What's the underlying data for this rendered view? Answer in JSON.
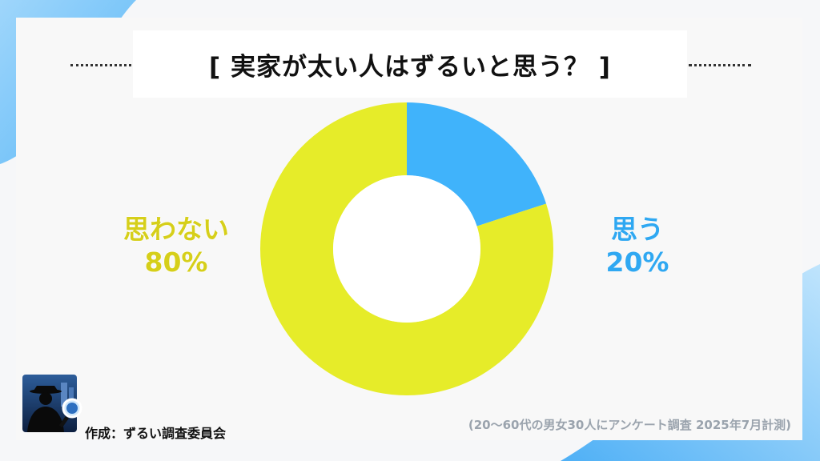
{
  "title": "[ 実家が太い人はずるいと思う？ ]",
  "chart_data": {
    "type": "pie",
    "categories": [
      "思う",
      "思わない"
    ],
    "values": [
      20,
      80
    ],
    "value_labels": [
      "20%",
      "80%"
    ],
    "colors": [
      "#40b3fb",
      "#e6ec29"
    ],
    "donut": true
  },
  "labels": {
    "no_name": "思わない",
    "no_pct": "80%",
    "yes_name": "思う",
    "yes_pct": "20%"
  },
  "footer": {
    "credit": "作成：ずるい調査委員会",
    "note": "(20～60代の男女30人にアンケート調査 2025年7月計測)"
  },
  "colors": {
    "accent_blue": "#40b3fb",
    "accent_yellow": "#e6ec29",
    "background": "#f8f8f8"
  }
}
